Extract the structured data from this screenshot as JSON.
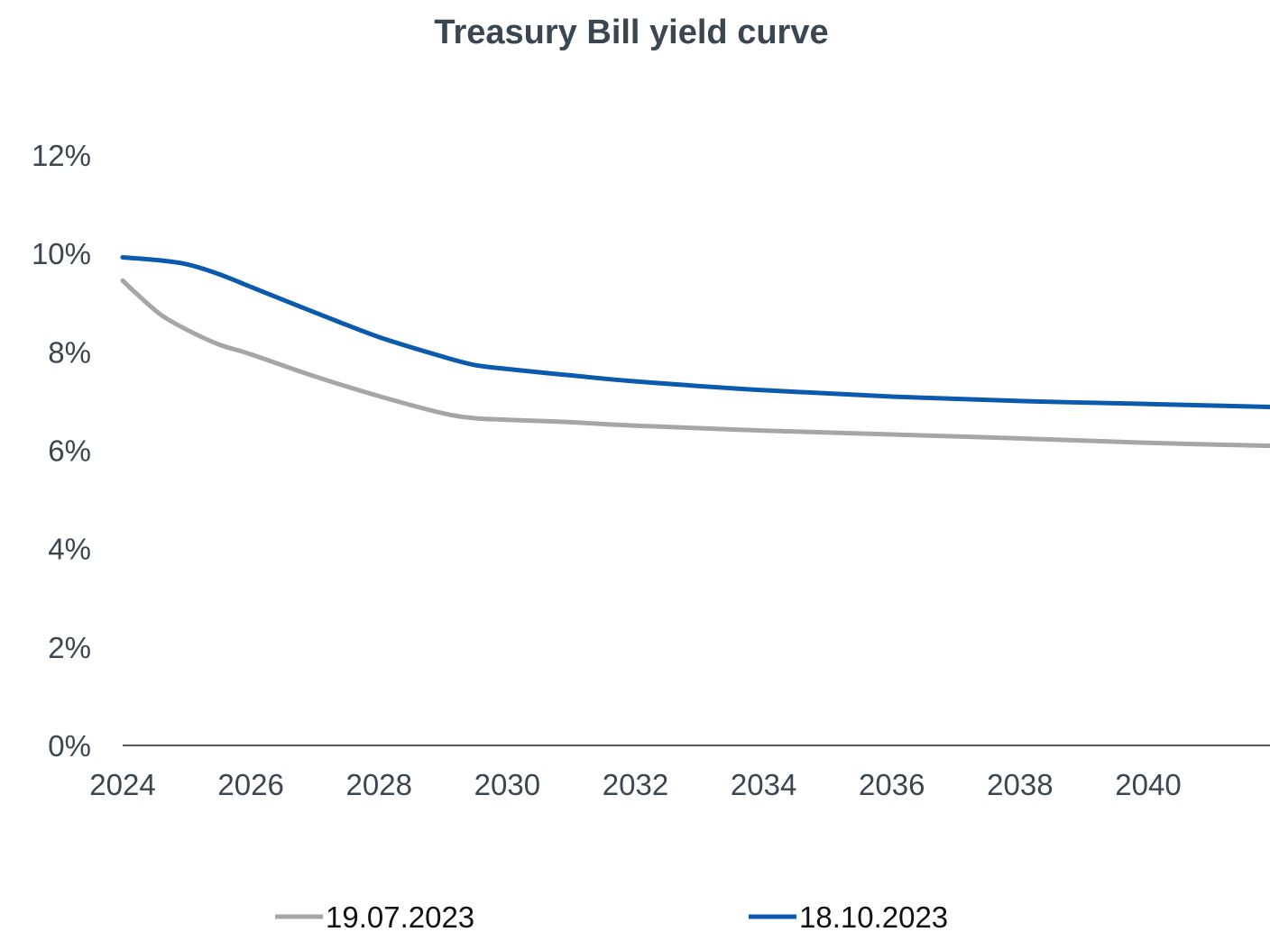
{
  "chart_data": {
    "type": "line",
    "title": "Treasury Bill yield curve",
    "xlabel": "",
    "ylabel": "",
    "x_ticks": [
      "2024",
      "2026",
      "2028",
      "2030",
      "2032",
      "2034",
      "2036",
      "2038",
      "2040"
    ],
    "y_ticks": [
      "0%",
      "2%",
      "4%",
      "6%",
      "8%",
      "10%",
      "12%"
    ],
    "xlim": [
      2024,
      2041.9
    ],
    "ylim": [
      0,
      12
    ],
    "grid": false,
    "legend_position": "bottom",
    "series": [
      {
        "name": "19.07.2023",
        "color": "#a6a6a6",
        "x": [
          2024.0,
          2024.2,
          2024.6,
          2025.0,
          2025.5,
          2026.0,
          2027.0,
          2028.0,
          2029.0,
          2029.5,
          2030.0,
          2031.0,
          2032.0,
          2034.0,
          2036.0,
          2038.0,
          2040.0,
          2041.9
        ],
        "y": [
          9.45,
          9.2,
          8.75,
          8.45,
          8.15,
          7.95,
          7.5,
          7.1,
          6.75,
          6.65,
          6.62,
          6.57,
          6.5,
          6.4,
          6.32,
          6.24,
          6.15,
          6.09
        ]
      },
      {
        "name": "18.10.2023",
        "color": "#0b5aad",
        "x": [
          2024.0,
          2024.5,
          2025.0,
          2025.5,
          2026.0,
          2027.0,
          2028.0,
          2029.0,
          2029.5,
          2030.0,
          2031.0,
          2032.0,
          2034.0,
          2036.0,
          2038.0,
          2040.0,
          2041.9
        ],
        "y": [
          9.92,
          9.87,
          9.78,
          9.58,
          9.32,
          8.8,
          8.3,
          7.9,
          7.73,
          7.65,
          7.52,
          7.4,
          7.22,
          7.09,
          7.0,
          6.94,
          6.88
        ]
      }
    ]
  }
}
